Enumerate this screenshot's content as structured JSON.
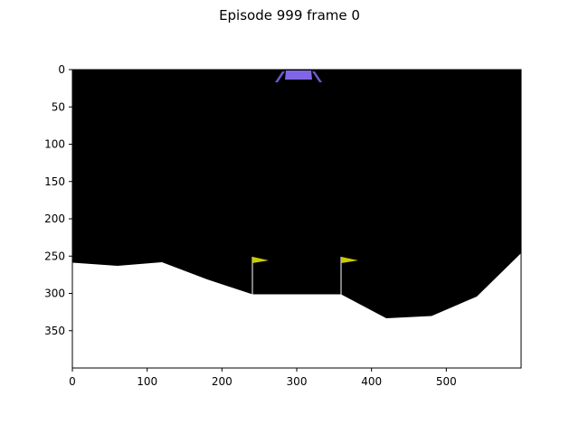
{
  "figure": {
    "title": "Episode 999 frame 0"
  },
  "axes": {
    "x_ticks": [
      "0",
      "100",
      "200",
      "300",
      "400",
      "500"
    ],
    "y_ticks": [
      "0",
      "50",
      "100",
      "150",
      "200",
      "250",
      "300",
      "350"
    ],
    "x_range": [
      0,
      600
    ],
    "y_range": [
      400,
      0
    ]
  },
  "scene": {
    "sky_color": "#000000",
    "ground_color": "#ffffff",
    "lander_color": "#8066e6",
    "lander_leg_color": "#6a5acd",
    "flag_color": "#cccc00",
    "flag_pole_color": "#ffffff",
    "lander_icon": "lunar-lander",
    "flag_icon": "landing-flag"
  }
}
